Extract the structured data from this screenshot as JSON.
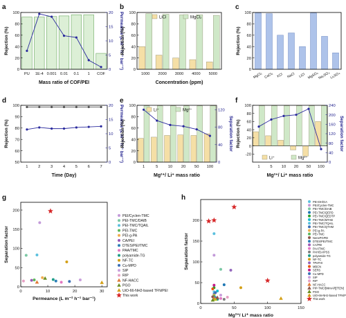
{
  "figure": {
    "panel_letters": [
      "a",
      "b",
      "c",
      "d",
      "e",
      "f",
      "g",
      "h"
    ]
  },
  "chart_data": [
    {
      "panel": "a",
      "type": "bar",
      "categories": [
        "PU",
        "1E-4",
        "0.001",
        "0.01",
        "0.1",
        "1",
        "COF"
      ],
      "series": [
        {
          "values": [
            92,
            92,
            93,
            94,
            96,
            96,
            28
          ],
          "role": "bar"
        },
        {
          "values": [
            6.5,
            19.5,
            18.5,
            11.8,
            11.2,
            3.2,
            0.8
          ],
          "role": "line",
          "axis": "right"
        }
      ],
      "xlabel": "Mass ratio of COF/PEI",
      "ylabel": "Rejection (%)",
      "ylabel_right": "Permeance (L m⁻² h⁻¹ bar⁻¹)",
      "ylim": [
        0,
        100
      ],
      "ylim_right": [
        0,
        20
      ],
      "yticks": [
        0,
        20,
        40,
        60,
        80,
        100
      ],
      "yticks_right": [
        0,
        5,
        10,
        15,
        20
      ],
      "colors": {
        "bar": "#dcefd6",
        "bar_edge": "#6aa85f",
        "line": "#2b2b9e"
      }
    },
    {
      "panel": "b",
      "type": "bar",
      "categories": [
        "1000",
        "2000",
        "3000",
        "4000",
        "5000"
      ],
      "series": [
        {
          "name": "LiCl",
          "values": [
            40,
            25,
            20,
            17,
            13
          ]
        },
        {
          "name": "MgCl₂",
          "values": [
            98,
            97,
            96,
            96,
            95
          ]
        }
      ],
      "xlabel": "Concentration (ppm)",
      "ylabel": "Rejection (%)",
      "ylim": [
        0,
        100
      ],
      "yticks": [
        0,
        20,
        40,
        60,
        80,
        100
      ],
      "legend_position": "top",
      "colors": {
        "LiCl": "#f5dfa6",
        "MgCl2": "#cfe8c8"
      }
    },
    {
      "panel": "c",
      "type": "bar",
      "categories": [
        "MgCl₂",
        "CaCl₂",
        "KCl",
        "NaCl",
        "LiCl",
        "MgSO₄",
        "Na₂SO₄",
        "Li₂SO₄"
      ],
      "series": [
        {
          "values": [
            99,
            98,
            60,
            64,
            40,
            99,
            58,
            29
          ]
        }
      ],
      "ylabel": "Rejection (%)",
      "ylim": [
        0,
        100
      ],
      "yticks": [
        0,
        20,
        40,
        60,
        80,
        100
      ],
      "colors": {
        "bar": "#aec3ea"
      }
    },
    {
      "panel": "d",
      "type": "line",
      "x": [
        1,
        2,
        3,
        4,
        5,
        6,
        7
      ],
      "series": [
        {
          "values": [
            98.5,
            98.5,
            98.5,
            98.5,
            98.5,
            98.5,
            98.5
          ],
          "axis": "left"
        },
        {
          "values": [
            11.5,
            12.2,
            11.8,
            11.8,
            12.2,
            12.4,
            12.6
          ],
          "axis": "right"
        }
      ],
      "xlabel": "Time (Day)",
      "ylabel": "Rejection (%)",
      "ylabel_right": "Permeance (L m⁻² h⁻¹ bar⁻¹)",
      "ylim": [
        50,
        100
      ],
      "ylim_right": [
        0,
        20
      ],
      "yticks": [
        50,
        60,
        70,
        80,
        90,
        100
      ],
      "yticks_right": [
        0,
        5,
        10,
        15,
        20
      ],
      "colors": {
        "left": "#555555",
        "right": "#2b2b9e"
      }
    },
    {
      "panel": "e",
      "type": "bar",
      "categories": [
        "1",
        "5",
        "10",
        "20",
        "50",
        "100"
      ],
      "series": [
        {
          "name": "Li⁺",
          "values": [
            42,
            44,
            47,
            48,
            47,
            50
          ]
        },
        {
          "name": "Mg²⁺",
          "values": [
            99,
            99,
            99,
            99,
            99,
            99
          ]
        },
        {
          "values": [
            120,
            95,
            85,
            82,
            75,
            60
          ],
          "role": "line",
          "axis": "right"
        }
      ],
      "xlabel": "Mg²⁺/ Li⁺ mass ratio",
      "ylabel": "Rejection (%)",
      "ylabel_right": "Separation factor",
      "ylim": [
        0,
        100
      ],
      "ylim_right": [
        0,
        130
      ],
      "yticks": [
        0,
        20,
        40,
        60,
        80,
        100
      ],
      "yticks_right": [
        0,
        40,
        80,
        120
      ],
      "legend_position": "top",
      "colors": {
        "Li": "#f5dfa6",
        "Mg": "#cfe8c8",
        "line": "#2b2b9e"
      }
    },
    {
      "panel": "f",
      "type": "bar",
      "categories": [
        "1",
        "5",
        "10",
        "20",
        "50",
        "100"
      ],
      "series": [
        {
          "name": "Li⁺",
          "values": [
            35,
            25,
            14,
            -10,
            -25,
            60
          ]
        },
        {
          "name": "Mg²⁺",
          "values": [
            99,
            99,
            99,
            99,
            99,
            99
          ]
        },
        {
          "values": [
            150,
            180,
            195,
            200,
            225,
            55
          ],
          "role": "line",
          "axis": "right"
        }
      ],
      "xlabel": "Mg²⁺/ Li⁺ mass ratio",
      "ylabel": "Rejection (%)",
      "ylabel_right": "Separation factor",
      "ylim": [
        -40,
        100
      ],
      "ylim_right": [
        0,
        240
      ],
      "yticks": [
        -20,
        0,
        20,
        40,
        60,
        80,
        100
      ],
      "yticks_right": [
        0,
        40,
        80,
        120,
        160,
        200,
        240
      ],
      "legend_position": "bottom",
      "colors": {
        "Li": "#f5dfa6",
        "Mg": "#cfe8c8",
        "line": "#2b2b9e"
      }
    },
    {
      "panel": "g",
      "type": "scatter",
      "xlabel": "Permeance (L m⁻² h⁻¹ bar⁻¹)",
      "ylabel": "Separation factor",
      "xlim": [
        0,
        32
      ],
      "ylim": [
        0,
        220
      ],
      "xticks": [
        0,
        10,
        20,
        30
      ],
      "yticks": [
        0,
        50,
        100,
        150,
        200
      ],
      "series": [
        {
          "name": "PEI/Cyclen-TMC",
          "x": [
            7
          ],
          "y": [
            167
          ],
          "color": "#c39ad9",
          "marker": "o"
        },
        {
          "name": "PEI-TMC/DAIB",
          "x": [
            2
          ],
          "y": [
            82
          ],
          "color": "#7bc8a4",
          "marker": "o"
        },
        {
          "name": "PEI-TMC/TQAIL",
          "x": [
            6
          ],
          "y": [
            83
          ],
          "color": "#5bc0de",
          "marker": "o"
        },
        {
          "name": "PEI-TMC",
          "x": [
            5
          ],
          "y": [
            18
          ],
          "color": "#5cb85c",
          "marker": "o"
        },
        {
          "name": "PEI-g-PA",
          "x": [
            8
          ],
          "y": [
            24
          ],
          "color": "#f0ad4e",
          "marker": "o"
        },
        {
          "name": "CA/PEI",
          "x": [
            4
          ],
          "y": [
            17
          ],
          "color": "#9b59b6",
          "marker": "o"
        },
        {
          "name": "DTES/PEI/TMC",
          "x": [
            13
          ],
          "y": [
            15
          ],
          "color": "#2c7fb8",
          "marker": "o"
        },
        {
          "name": "PAA/TMC",
          "x": [
            15
          ],
          "y": [
            12
          ],
          "color": "#e377c2",
          "marker": "o"
        },
        {
          "name": "polyamide-TG",
          "x": [
            12
          ],
          "y": [
            19
          ],
          "color": "#1f9e89",
          "marker": "o"
        },
        {
          "name": "NF-TC",
          "x": [
            17
          ],
          "y": [
            65
          ],
          "color": "#d4a017",
          "marker": "o"
        },
        {
          "name": "Cu-MPD",
          "x": [
            18
          ],
          "y": [
            14
          ],
          "color": "#3b6fb6",
          "marker": "o"
        },
        {
          "name": "SIP",
          "x": [
            22
          ],
          "y": [
            18
          ],
          "color": "#c9a0dc",
          "marker": "o"
        },
        {
          "name": "RIP",
          "x": [
            1
          ],
          "y": [
            15
          ],
          "color": "#e6a0c4",
          "marker": "o"
        },
        {
          "name": "NF-HACC",
          "x": [
            6
          ],
          "y": [
            12
          ],
          "color": "#e07b39",
          "marker": "^"
        },
        {
          "name": "PGO",
          "x": [
            9
          ],
          "y": [
            22
          ],
          "color": "#6b8e23",
          "marker": "^"
        },
        {
          "name": "UiO-66-NH2-based TFN/PEI",
          "x": [
            30
          ],
          "y": [
            11
          ],
          "color": "#d4a017",
          "marker": "^"
        },
        {
          "name": "This work",
          "x": [
            11
          ],
          "y": [
            197
          ],
          "color": "#d62728",
          "marker": "*"
        }
      ]
    },
    {
      "panel": "h",
      "type": "scatter",
      "xlabel": "Mg²⁺/ Li⁺ mass ratio",
      "ylabel": "Separation factor",
      "xlim": [
        0,
        150
      ],
      "ylim": [
        0,
        250
      ],
      "xticks": [
        0,
        50,
        100,
        150
      ],
      "yticks": [
        0,
        50,
        100,
        150,
        200
      ],
      "series": [
        {
          "name": "PEI-DH/GA",
          "x": [
            20
          ],
          "y": [
            168
          ],
          "color": "#5bc0de",
          "marker": "o"
        },
        {
          "name": "PEI/Cyclen-TMC",
          "x": [
            20
          ],
          "y": [
            116
          ],
          "color": "#c39ad9",
          "marker": "o"
        },
        {
          "name": "PEI-TMC/DAIB",
          "x": [
            30
          ],
          "y": [
            82
          ],
          "color": "#7bc8a4",
          "marker": "o"
        },
        {
          "name": "PEI-TMC/QEPD",
          "x": [
            35
          ],
          "y": [
            45
          ],
          "color": "#1f77b4",
          "marker": "o"
        },
        {
          "name": "PEI-TMC/QEDTP",
          "x": [
            20
          ],
          "y": [
            38
          ],
          "color": "#2ca02c",
          "marker": "o"
        },
        {
          "name": "PEI-TMC/MTAB",
          "x": [
            25
          ],
          "y": [
            30
          ],
          "color": "#17becf",
          "marker": "o"
        },
        {
          "name": "PEI-TMC/TQAIL",
          "x": [
            20
          ],
          "y": [
            28
          ],
          "color": "#5bc0de",
          "marker": "o"
        },
        {
          "name": "PEI-TMC/QTHM",
          "x": [
            20
          ],
          "y": [
            22
          ],
          "color": "#3b6fb6",
          "marker": "o"
        },
        {
          "name": "PEI-g-PA",
          "x": [
            20
          ],
          "y": [
            20
          ],
          "color": "#f0ad4e",
          "marker": "o"
        },
        {
          "name": "PEI-TMC",
          "x": [
            20
          ],
          "y": [
            18
          ],
          "color": "#5cb85c",
          "marker": "o"
        },
        {
          "name": "NenePGPEI",
          "x": [
            18
          ],
          "y": [
            16
          ],
          "color": "#8c564b",
          "marker": "o"
        },
        {
          "name": "DTES/PEI/TMC",
          "x": [
            22
          ],
          "y": [
            14
          ],
          "color": "#2c7fb8",
          "marker": "o"
        },
        {
          "name": "CA/PEI",
          "x": [
            24
          ],
          "y": [
            12
          ],
          "color": "#9b59b6",
          "marker": "o"
        },
        {
          "name": "PAA/TMC",
          "x": [
            30
          ],
          "y": [
            12
          ],
          "color": "#e377c2",
          "marker": "o"
        },
        {
          "name": "PAH/DA/PSS",
          "x": [
            35
          ],
          "y": [
            10
          ],
          "color": "#7f7f7f",
          "marker": "o"
        },
        {
          "name": "polyamide-TG",
          "x": [
            25
          ],
          "y": [
            10
          ],
          "color": "#1f9e89",
          "marker": "o"
        },
        {
          "name": "NF-TC",
          "x": [
            60
          ],
          "y": [
            38
          ],
          "color": "#d4a017",
          "marker": "o"
        },
        {
          "name": "TPeFHI",
          "x": [
            45
          ],
          "y": [
            80
          ],
          "color": "#9467bd",
          "marker": "o"
        },
        {
          "name": "MBCN",
          "x": [
            18
          ],
          "y": [
            35
          ],
          "color": "#e6550d",
          "marker": "o"
        },
        {
          "name": "SERS",
          "x": [
            20
          ],
          "y": [
            44
          ],
          "color": "#c51b8a",
          "marker": "o"
        },
        {
          "name": "Cu-MPD",
          "x": [
            22
          ],
          "y": [
            26
          ],
          "color": "#3b6fb6",
          "marker": "o"
        },
        {
          "name": "SIP",
          "x": [
            30
          ],
          "y": [
            20
          ],
          "color": "#c9a0dc",
          "marker": "o"
        },
        {
          "name": "RIP",
          "x": [
            40
          ],
          "y": [
            15
          ],
          "color": "#e6a0c4",
          "marker": "o"
        },
        {
          "name": "NF-HACC",
          "x": [
            20
          ],
          "y": [
            12
          ],
          "color": "#e07b39",
          "marker": "^"
        },
        {
          "name": "PIP-TMC/[MimAP][TfZN]",
          "x": [
            25
          ],
          "y": [
            14
          ],
          "color": "#8c564b",
          "marker": "^"
        },
        {
          "name": "PIP-TMC/[MimAP][TfZN]",
          "x": [
            22
          ],
          "y": [
            10
          ],
          "color": "#bcbd22",
          "marker": "^"
        },
        {
          "name": "PGO",
          "x": [
            18
          ],
          "y": [
            8
          ],
          "color": "#6b8e23",
          "marker": "^"
        },
        {
          "name": "UiO-66-NH2-based TFN/PEI",
          "x": [
            120
          ],
          "y": [
            12
          ],
          "color": "#d4a017",
          "marker": "^"
        },
        {
          "name": "This work",
          "x": [
            12
          ],
          "y": [
            198
          ],
          "color": "#d62728",
          "marker": "*"
        },
        {
          "name": "This work",
          "x": [
            20
          ],
          "y": [
            200
          ],
          "color": "#d62728",
          "marker": "*"
        },
        {
          "name": "This work",
          "x": [
            50
          ],
          "y": [
            232
          ],
          "color": "#d62728",
          "marker": "*"
        },
        {
          "name": "This work",
          "x": [
            100
          ],
          "y": [
            55
          ],
          "color": "#d62728",
          "marker": "*"
        }
      ]
    }
  ]
}
